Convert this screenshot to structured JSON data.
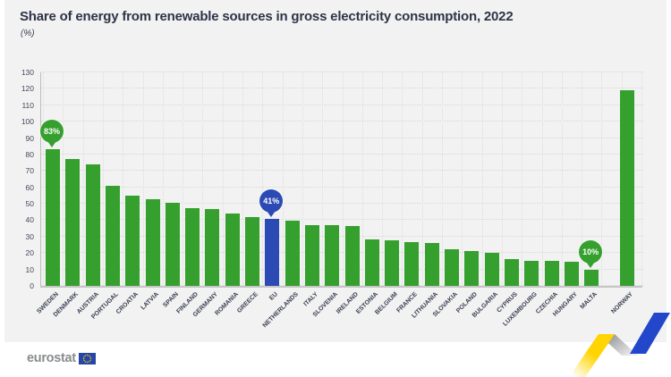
{
  "title": "Share of energy from renewable sources in gross electricity consumption, 2022",
  "subtitle": "(%)",
  "chart_data": {
    "type": "bar",
    "title": "Share of energy from renewable sources in gross electricity consumption, 2022",
    "unit": "%",
    "xlabel": "",
    "ylabel": "(%)",
    "ylim": [
      0,
      130
    ],
    "ytick_step": 10,
    "yticks": [
      0,
      10,
      20,
      30,
      40,
      50,
      60,
      70,
      80,
      90,
      100,
      110,
      120,
      130
    ],
    "grid": "dotted horizontal and vertical",
    "legend_position": "none",
    "categories": [
      "SWEDEN",
      "DENMARK",
      "AUSTRIA",
      "PORTUGAL",
      "CROATIA",
      "LATVIA",
      "SPAIN",
      "FINLAND",
      "GERMANY",
      "ROMANIA",
      "GREECE",
      "EU",
      "NETHERLANDS",
      "ITALY",
      "SLOVENIA",
      "IRELAND",
      "ESTONIA",
      "BELGIUM",
      "FRANCE",
      "LITHUANIA",
      "SLOVAKIA",
      "POLAND",
      "BULGARIA",
      "CYPRUS",
      "LUXEMBOURG",
      "CZECHIA",
      "HUNGARY",
      "MALTA",
      "NORWAY"
    ],
    "values": [
      83,
      77,
      74,
      61,
      55,
      53,
      50.5,
      47.5,
      47,
      44,
      42,
      41,
      39.5,
      37,
      37,
      36.5,
      28.5,
      28,
      26.5,
      26,
      22.5,
      21,
      20,
      16.5,
      15.5,
      15,
      14.5,
      10,
      119
    ],
    "highlighted_category": "EU",
    "separated_categories": [
      "NORWAY"
    ],
    "annotations": [
      {
        "category": "SWEDEN",
        "text": "83%"
      },
      {
        "category": "EU",
        "text": "41%"
      },
      {
        "category": "MALTA",
        "text": "10%"
      }
    ]
  },
  "footer": {
    "brand": "eurostat"
  },
  "colors": {
    "bar_green": "#36a02f",
    "bar_blue": "#2b4ab4",
    "title_text": "#2e3447",
    "axis_text": "#434a5a",
    "card_bg": "#f2f2f2",
    "logo_gray": "#898b8e",
    "flag_blue": "#2546a8",
    "star_yellow": "#ffcc00",
    "ribbon_yellow": "#ffd400",
    "ribbon_blue": "#2347cb",
    "ribbon_gray": "#b5b5b5"
  }
}
